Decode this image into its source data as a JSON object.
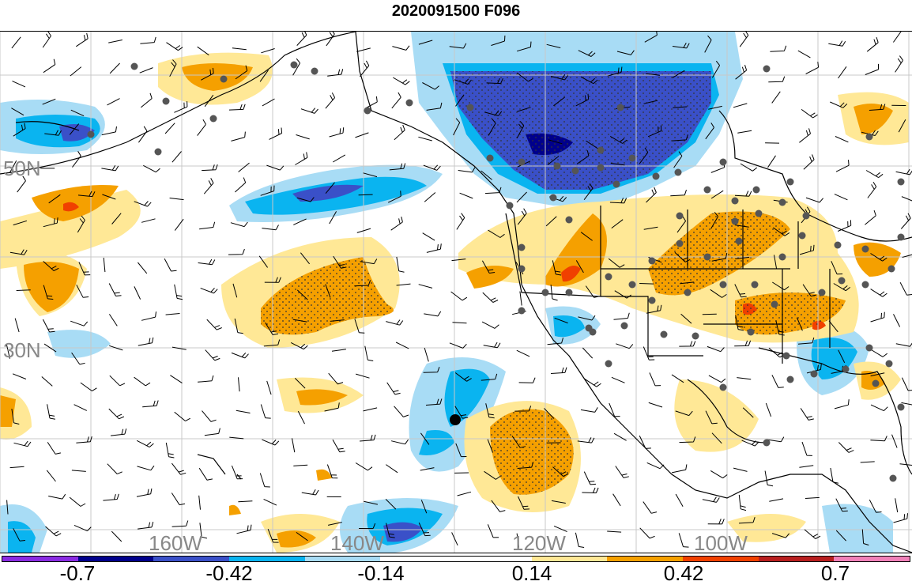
{
  "title": "2020091500 F096",
  "map": {
    "latitude_labels": [
      "50N",
      "30N"
    ],
    "longitude_labels": [
      "160W",
      "140W",
      "120W",
      "100W"
    ],
    "colors": {
      "grid": "#c8c8c8",
      "coast": "#000000",
      "station_dot": "#555555",
      "marker_dot": "#000000",
      "label_gray": "#888888"
    }
  },
  "colorbar": {
    "colors": [
      "#8a2be2",
      "#00008b",
      "#3a50c8",
      "#0ab4f0",
      "#a8dcf5",
      "#ffffff",
      "#ffffff",
      "#ffe896",
      "#f5a000",
      "#f04000",
      "#b81e1e",
      "#f080b8"
    ],
    "labels": [
      "-0.7",
      "-0.42",
      "-0.14",
      "0.14",
      "0.42",
      "0.7"
    ]
  }
}
